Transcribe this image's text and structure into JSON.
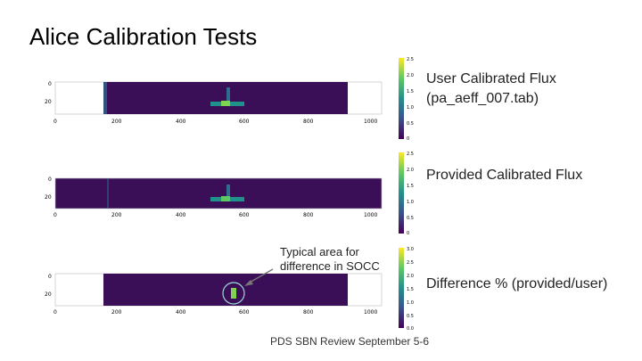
{
  "slide": {
    "title": "Alice Calibration Tests",
    "footer": "PDS SBN Review September 5-6"
  },
  "panels": [
    {
      "id": "user",
      "label_line1": "User Calibrated Flux",
      "label_line2": "(pa_aeff_007.tab)",
      "y_ticks": [
        "0",
        "20"
      ],
      "x_ticks": [
        "0",
        "200",
        "400",
        "600",
        "800",
        "1000"
      ],
      "colorbar_ticks": [
        "2.5",
        "2.0",
        "1.5",
        "1.0",
        "0.5",
        "0"
      ]
    },
    {
      "id": "provided",
      "label_line1": "Provided Calibrated Flux",
      "y_ticks": [
        "0",
        "20"
      ],
      "x_ticks": [
        "0",
        "200",
        "400",
        "600",
        "800",
        "1000"
      ],
      "colorbar_ticks": [
        "2.5",
        "2.0",
        "1.5",
        "1.0",
        "0.5",
        "0"
      ]
    },
    {
      "id": "difference",
      "label_line1": "Difference % (provided/user)",
      "y_ticks": [
        "0",
        "20"
      ],
      "x_ticks": [
        "0",
        "200",
        "400",
        "600",
        "800",
        "1000"
      ],
      "colorbar_ticks": [
        "3.0",
        "2.5",
        "2.0",
        "1.5",
        "1.0",
        "0.5",
        "0.0"
      ]
    }
  ],
  "annotation": {
    "line1": "Typical area for",
    "line2": "difference in SOCC"
  },
  "colors": {
    "background_field": "#3b0f58",
    "bright_spot": "#7fd34e",
    "mid_spot": "#21918c",
    "circle": "#9fd8d8"
  }
}
